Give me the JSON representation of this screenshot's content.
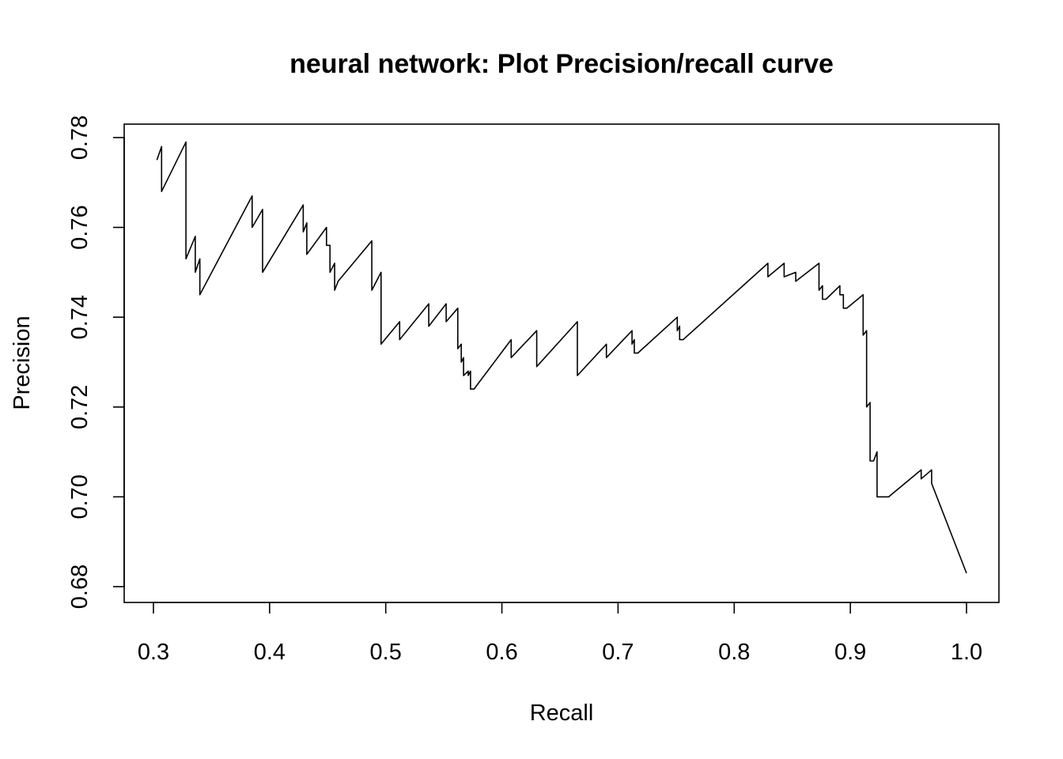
{
  "chart_data": {
    "type": "line",
    "title": "neural network: Plot Precision/recall curve",
    "xlabel": "Recall",
    "ylabel": "Precision",
    "xlim": [
      0.3,
      1.0
    ],
    "ylim": [
      0.68,
      0.78
    ],
    "x_ticks": [
      {
        "value": 0.3,
        "label": "0.3"
      },
      {
        "value": 0.4,
        "label": "0.4"
      },
      {
        "value": 0.5,
        "label": "0.5"
      },
      {
        "value": 0.6,
        "label": "0.6"
      },
      {
        "value": 0.7,
        "label": "0.7"
      },
      {
        "value": 0.8,
        "label": "0.8"
      },
      {
        "value": 0.9,
        "label": "0.9"
      },
      {
        "value": 1.0,
        "label": "1.0"
      }
    ],
    "y_ticks": [
      {
        "value": 0.68,
        "label": "0.68"
      },
      {
        "value": 0.7,
        "label": "0.70"
      },
      {
        "value": 0.72,
        "label": "0.72"
      },
      {
        "value": 0.74,
        "label": "0.74"
      },
      {
        "value": 0.76,
        "label": "0.76"
      },
      {
        "value": 0.78,
        "label": "0.78"
      }
    ],
    "grid": false,
    "series": [
      {
        "name": "Precision/recall",
        "x": [
          0.303,
          0.307,
          0.307,
          0.328,
          0.328,
          0.336,
          0.336,
          0.34,
          0.34,
          0.385,
          0.385,
          0.394,
          0.394,
          0.429,
          0.429,
          0.432,
          0.432,
          0.449,
          0.449,
          0.452,
          0.452,
          0.456,
          0.456,
          0.459,
          0.459,
          0.488,
          0.488,
          0.496,
          0.496,
          0.512,
          0.512,
          0.537,
          0.537,
          0.552,
          0.552,
          0.562,
          0.562,
          0.565,
          0.565,
          0.567,
          0.567,
          0.571,
          0.571,
          0.573,
          0.573,
          0.576,
          0.576,
          0.608,
          0.608,
          0.63,
          0.63,
          0.665,
          0.665,
          0.69,
          0.69,
          0.712,
          0.712,
          0.714,
          0.714,
          0.717,
          0.717,
          0.751,
          0.751,
          0.753,
          0.753,
          0.756,
          0.756,
          0.829,
          0.829,
          0.843,
          0.843,
          0.853,
          0.853,
          0.873,
          0.873,
          0.876,
          0.876,
          0.879,
          0.879,
          0.891,
          0.891,
          0.894,
          0.894,
          0.897,
          0.897,
          0.911,
          0.911,
          0.914,
          0.914,
          0.917,
          0.917,
          0.92,
          0.92,
          0.923,
          0.923,
          0.933,
          0.933,
          0.961,
          0.961,
          0.97,
          0.97,
          1.0
        ],
        "y": [
          0.775,
          0.778,
          0.768,
          0.779,
          0.753,
          0.758,
          0.75,
          0.753,
          0.745,
          0.767,
          0.76,
          0.764,
          0.75,
          0.765,
          0.759,
          0.761,
          0.754,
          0.76,
          0.756,
          0.756,
          0.75,
          0.752,
          0.746,
          0.748,
          0.748,
          0.757,
          0.746,
          0.75,
          0.734,
          0.739,
          0.735,
          0.743,
          0.738,
          0.743,
          0.739,
          0.742,
          0.733,
          0.734,
          0.73,
          0.731,
          0.727,
          0.728,
          0.727,
          0.728,
          0.724,
          0.724,
          0.724,
          0.735,
          0.731,
          0.737,
          0.729,
          0.739,
          0.727,
          0.734,
          0.731,
          0.737,
          0.734,
          0.735,
          0.732,
          0.732,
          0.732,
          0.74,
          0.737,
          0.738,
          0.735,
          0.735,
          0.735,
          0.752,
          0.749,
          0.752,
          0.749,
          0.75,
          0.748,
          0.752,
          0.746,
          0.747,
          0.744,
          0.744,
          0.744,
          0.747,
          0.745,
          0.745,
          0.742,
          0.742,
          0.742,
          0.745,
          0.736,
          0.737,
          0.72,
          0.721,
          0.708,
          0.708,
          0.708,
          0.71,
          0.7,
          0.7,
          0.7,
          0.706,
          0.704,
          0.706,
          0.703,
          0.683
        ]
      }
    ]
  }
}
